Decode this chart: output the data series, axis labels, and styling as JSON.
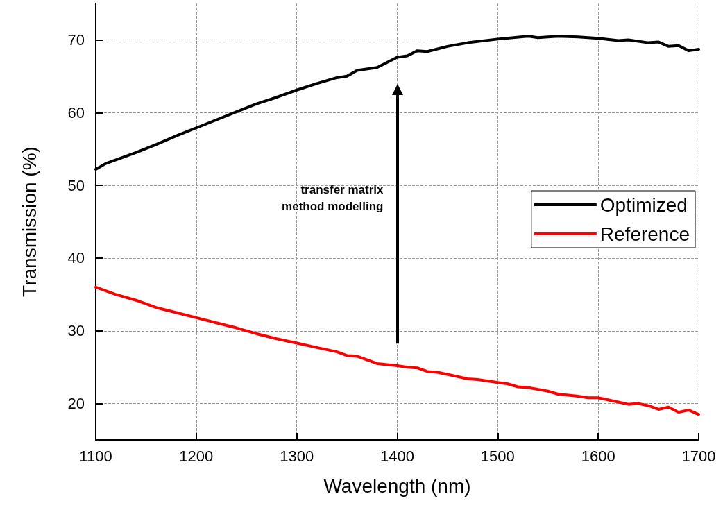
{
  "chart_data": {
    "type": "line",
    "xlabel": "Wavelength (nm)",
    "ylabel": "Transmission (%)",
    "xlim": [
      1100,
      1700
    ],
    "xticks": [
      1100,
      1200,
      1300,
      1400,
      1500,
      1600,
      1700
    ],
    "ylim": [
      15,
      75
    ],
    "yticks": [
      20,
      30,
      40,
      50,
      60,
      70
    ],
    "grid": true,
    "legend": "right",
    "marker": "none",
    "line_style": "solid",
    "annotations": [
      "transfer matrix\nmethod modelling"
    ],
    "series": [
      {
        "name": "Optimized",
        "color": "#000000",
        "x": [
          1100,
          1110,
          1120,
          1140,
          1160,
          1180,
          1200,
          1220,
          1240,
          1260,
          1280,
          1300,
          1320,
          1340,
          1350,
          1360,
          1380,
          1400,
          1410,
          1420,
          1430,
          1450,
          1470,
          1500,
          1530,
          1540,
          1560,
          1580,
          1600,
          1620,
          1630,
          1650,
          1660,
          1670,
          1680,
          1690,
          1700
        ],
        "values": [
          52.2,
          53.0,
          53.5,
          54.5,
          55.6,
          56.8,
          57.9,
          59.0,
          60.1,
          61.2,
          62.1,
          63.1,
          64.0,
          64.8,
          65.0,
          65.8,
          66.2,
          67.6,
          67.8,
          68.5,
          68.4,
          69.1,
          69.6,
          70.1,
          70.5,
          70.3,
          70.5,
          70.4,
          70.2,
          69.9,
          70.0,
          69.6,
          69.7,
          69.1,
          69.2,
          68.5,
          68.7
        ]
      },
      {
        "name": "Reference",
        "color": "#ff0000",
        "x": [
          1100,
          1110,
          1120,
          1140,
          1160,
          1180,
          1200,
          1220,
          1240,
          1260,
          1280,
          1300,
          1320,
          1340,
          1350,
          1360,
          1380,
          1400,
          1410,
          1420,
          1430,
          1440,
          1460,
          1470,
          1480,
          1500,
          1510,
          1520,
          1530,
          1550,
          1560,
          1580,
          1590,
          1600,
          1620,
          1630,
          1640,
          1650,
          1660,
          1670,
          1680,
          1690,
          1700
        ],
        "values": [
          36.0,
          35.5,
          35.0,
          34.2,
          33.2,
          32.5,
          31.8,
          31.1,
          30.4,
          29.6,
          28.9,
          28.3,
          27.7,
          27.1,
          26.6,
          26.5,
          25.5,
          25.2,
          25.0,
          24.9,
          24.4,
          24.3,
          23.7,
          23.4,
          23.3,
          22.9,
          22.7,
          22.3,
          22.2,
          21.7,
          21.3,
          21.0,
          20.8,
          20.8,
          20.2,
          19.9,
          20.0,
          19.7,
          19.2,
          19.5,
          18.8,
          19.1,
          18.5
        ]
      }
    ]
  }
}
